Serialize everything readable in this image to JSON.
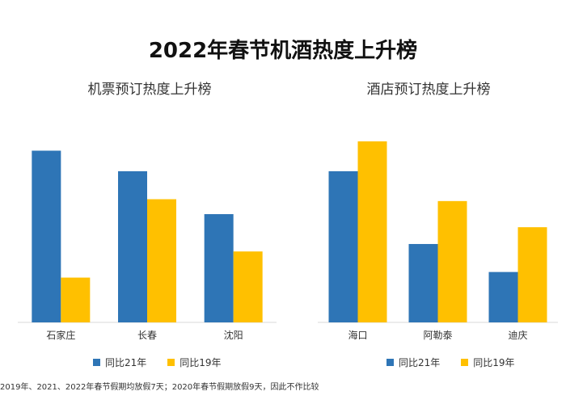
{
  "title": "2022年春节机酒热度上升榜",
  "footnote": "2019年、2021、2022年春节假期均放假7天；2020年春节假期放假9天，因此不作比较",
  "colors": {
    "series1": "#2E75B6",
    "series2": "#FFC000",
    "axis": "#d9d9d9"
  },
  "chart_data": [
    {
      "type": "bar",
      "title": "机票预订热度上升榜",
      "categories": [
        "石家庄",
        "长春",
        "沈阳"
      ],
      "series": [
        {
          "name": "同比21年",
          "values": [
            92,
            81,
            58
          ]
        },
        {
          "name": "同比19年",
          "values": [
            24,
            66,
            38
          ]
        }
      ],
      "ylim": [
        0,
        100
      ],
      "grid": false,
      "legend": "bottom"
    },
    {
      "type": "bar",
      "title": "酒店预订热度上升榜",
      "categories": [
        "海口",
        "阿勒泰",
        "迪庆"
      ],
      "series": [
        {
          "name": "同比21年",
          "values": [
            81,
            42,
            27
          ]
        },
        {
          "name": "同比19年",
          "values": [
            97,
            65,
            51
          ]
        }
      ],
      "ylim": [
        0,
        100
      ],
      "grid": false,
      "legend": "bottom"
    }
  ]
}
